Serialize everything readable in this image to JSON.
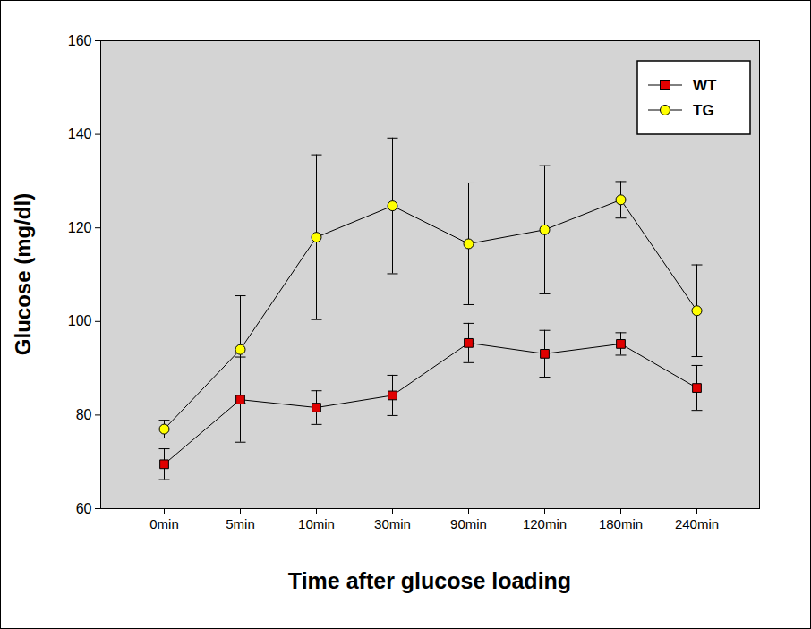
{
  "chart_data": {
    "type": "line",
    "x_label": "Time after glucose loading",
    "y_label": "Glucose (mg/dl)",
    "categories": [
      "0min",
      "5min",
      "10min",
      "30min",
      "90min",
      "120min",
      "180min",
      "240min"
    ],
    "series": [
      {
        "name": "WT",
        "color": "#e00000",
        "marker": "square",
        "line_style": "solid",
        "values": [
          69.5,
          83.3,
          81.6,
          84.2,
          95.4,
          93.1,
          95.2,
          85.8
        ],
        "errors": [
          3.3,
          9.1,
          3.6,
          4.3,
          4.2,
          5.0,
          2.4,
          4.8
        ]
      },
      {
        "name": "TG",
        "color": "#ffff00",
        "marker": "circle",
        "line_style": "solid",
        "values": [
          77.0,
          94.0,
          118.0,
          124.7,
          116.6,
          119.6,
          126.0,
          102.3
        ],
        "errors": [
          1.9,
          11.5,
          17.6,
          14.5,
          13.0,
          13.7,
          3.9,
          9.8
        ]
      }
    ],
    "ylim": [
      60,
      160
    ],
    "yticks": [
      60,
      80,
      100,
      120,
      140,
      160
    ],
    "grid": false,
    "legend": "top-right"
  }
}
